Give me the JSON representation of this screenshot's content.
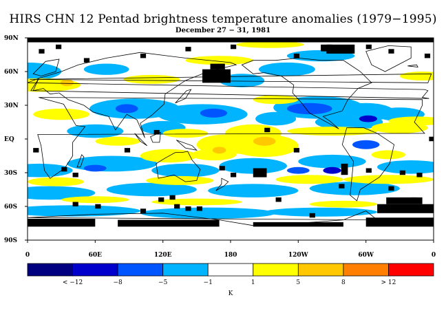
{
  "title": "HIRS CHN 12 Pentad brightness temperature anomalies (1979−1995)",
  "subtitle": "December 27 − 31, 1981",
  "map": {
    "type": "global-anomaly-map",
    "projection": "cylindrical-equidistant",
    "lon_range": [
      0,
      360
    ],
    "lat_range": [
      -90,
      90
    ],
    "missing_color": "#000000",
    "lat_labels": [
      "90N",
      "60N",
      "30N",
      "EQ",
      "30S",
      "60S",
      "90S"
    ],
    "lon_labels": [
      "0",
      "60E",
      "120E",
      "180",
      "120W",
      "60W",
      "0"
    ]
  },
  "colorbar": {
    "unit": "K",
    "colors": [
      "#000080",
      "#0000cc",
      "#0055ff",
      "#00b4ff",
      "#ffffff",
      "#ffff00",
      "#ffc800",
      "#ff8000",
      "#ff0000"
    ],
    "labels": [
      "< −12",
      "−8",
      "−5",
      "−1",
      "1",
      "5",
      "8",
      "> 12"
    ]
  }
}
